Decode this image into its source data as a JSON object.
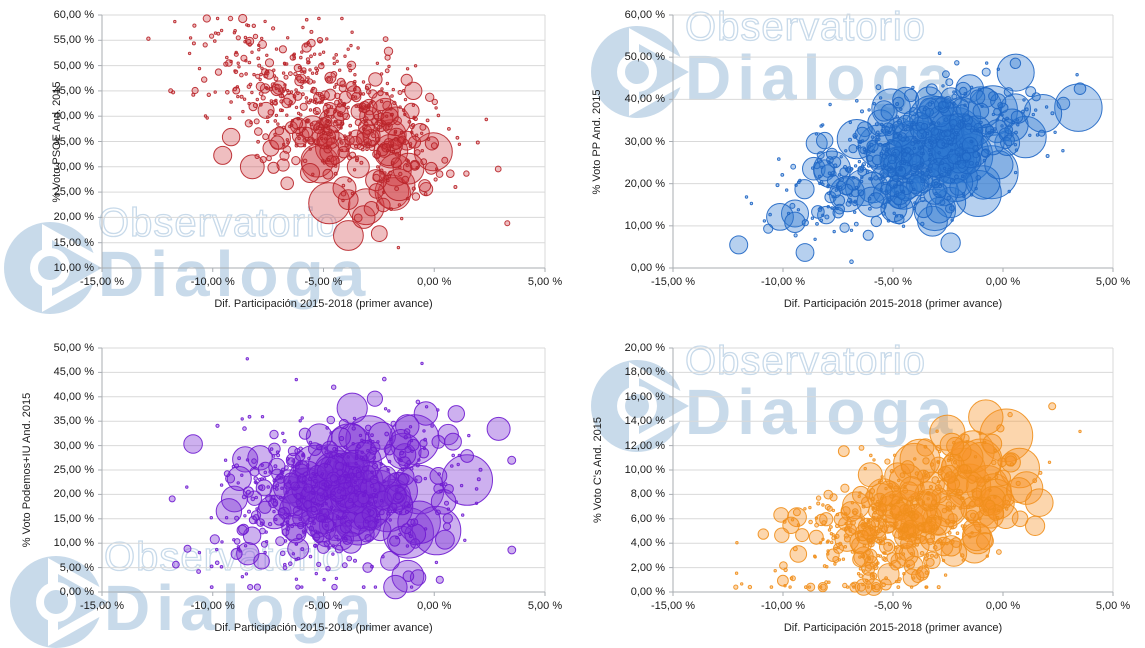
{
  "page": {
    "background": "#ffffff"
  },
  "watermark": {
    "line1": "Observatorio",
    "line2": "Dialoga",
    "color": "#c8daea"
  },
  "axis_style": {
    "axis_line_color": "#a9adb2",
    "gridline_color": "#d9d9d9",
    "tick_label_color": "#1a1a1a"
  },
  "chart_data": [
    {
      "type": "bubble",
      "name": "PSOE",
      "ylabel": "% Voto PSOE And. 2015",
      "xlabel": "Dif. Participación 2015-2018 (primer avance)",
      "ylim": [
        10,
        60
      ],
      "y_tick_step": 5,
      "xlim": [
        -15,
        5
      ],
      "x_tick_step": 5,
      "yticks": [
        "10,00 %",
        "15,00 %",
        "20,00 %",
        "25,00 %",
        "30,00 %",
        "35,00 %",
        "40,00 %",
        "45,00 %",
        "50,00 %",
        "55,00 %",
        "60,00 %"
      ],
      "xticks": [
        "-15,00 %",
        "-10,00 %",
        "-5,00 %",
        "0,00 %",
        "5,00 %"
      ],
      "color": {
        "stroke": "#b82329",
        "fill": "#cf3a3f",
        "fill_opacity": 0.33
      },
      "bubbles": {
        "count": 640,
        "seed": 101,
        "mean": [
          -4.6,
          40.5
        ],
        "std": [
          2.7,
          8.8
        ],
        "corr": -0.52,
        "clip_x": [
          -14.6,
          3.3
        ],
        "clip_y": [
          12.5,
          59.3
        ],
        "rmin": 1.2,
        "rmax": 33,
        "size_bias": "low_y"
      }
    },
    {
      "type": "bubble",
      "name": "PP",
      "ylabel": "% Voto PP And. 2015",
      "xlabel": "Dif. Participación 2015-2018 (primer avance)",
      "ylim": [
        0,
        60
      ],
      "y_tick_step": 10,
      "xlim": [
        -15,
        5
      ],
      "x_tick_step": 5,
      "yticks": [
        "0,00 %",
        "10,00 %",
        "20,00 %",
        "30,00 %",
        "40,00 %",
        "50,00 %",
        "60,00 %"
      ],
      "xticks": [
        "-15,00 %",
        "-10,00 %",
        "-5,00 %",
        "0,00 %",
        "5,00 %"
      ],
      "color": {
        "stroke": "#1f66c4",
        "fill": "#2e78d2",
        "fill_opacity": 0.35
      },
      "bubbles": {
        "count": 620,
        "seed": 202,
        "mean": [
          -4.3,
          26.5
        ],
        "std": [
          2.8,
          8.5
        ],
        "corr": 0.5,
        "clip_x": [
          -14.6,
          3.5
        ],
        "clip_y": [
          1.5,
          55.5
        ],
        "rmin": 1.2,
        "rmax": 30,
        "size_bias": "mid_y_high_x"
      }
    },
    {
      "type": "bubble",
      "name": "Podemos+IU",
      "ylabel": "% Voto Podemos+IU And. 2015",
      "xlabel": "Dif. Participación 2015-2018 (primer avance)",
      "ylim": [
        0,
        50
      ],
      "y_tick_step": 5,
      "xlim": [
        -15,
        5
      ],
      "x_tick_step": 5,
      "yticks": [
        "0,00 %",
        "5,00 %",
        "10,00 %",
        "15,00 %",
        "20,00 %",
        "25,00 %",
        "30,00 %",
        "35,00 %",
        "40,00 %",
        "45,00 %",
        "50,00 %"
      ],
      "xticks": [
        "-15,00 %",
        "-10,00 %",
        "-5,00 %",
        "0,00 %",
        "5,00 %"
      ],
      "color": {
        "stroke": "#6f1bd0",
        "fill": "#7c2fd6",
        "fill_opacity": 0.38
      },
      "bubbles": {
        "count": 660,
        "seed": 303,
        "mean": [
          -4.5,
          20.5
        ],
        "std": [
          2.7,
          8.3
        ],
        "corr": 0.18,
        "clip_x": [
          -14.6,
          3.5
        ],
        "clip_y": [
          1,
          48.5
        ],
        "rmin": 1.2,
        "rmax": 28,
        "size_bias": "high_x"
      }
    },
    {
      "type": "bubble",
      "name": "C's",
      "ylabel": "% Voto C's And. 2015",
      "xlabel": "Dif. Participación 2015-2018 (primer avance)",
      "ylim": [
        0,
        20
      ],
      "y_tick_step": 2,
      "xlim": [
        -15,
        5
      ],
      "x_tick_step": 5,
      "yticks": [
        "0,00 %",
        "2,00 %",
        "4,00 %",
        "6,00 %",
        "8,00 %",
        "10,00 %",
        "12,00 %",
        "14,00 %",
        "16,00 %",
        "18,00 %",
        "20,00 %"
      ],
      "xticks": [
        "-15,00 %",
        "-10,00 %",
        "-5,00 %",
        "0,00 %",
        "5,00 %"
      ],
      "color": {
        "stroke": "#ef8f1c",
        "fill": "#f79428",
        "fill_opacity": 0.38
      },
      "bubbles": {
        "count": 610,
        "seed": 404,
        "mean": [
          -4.4,
          5.8
        ],
        "std": [
          2.6,
          3.1
        ],
        "corr": 0.42,
        "clip_x": [
          -14.6,
          3.5
        ],
        "clip_y": [
          0.4,
          18.8
        ],
        "rmin": 1.2,
        "rmax": 30,
        "size_bias": "high_xy"
      }
    }
  ]
}
